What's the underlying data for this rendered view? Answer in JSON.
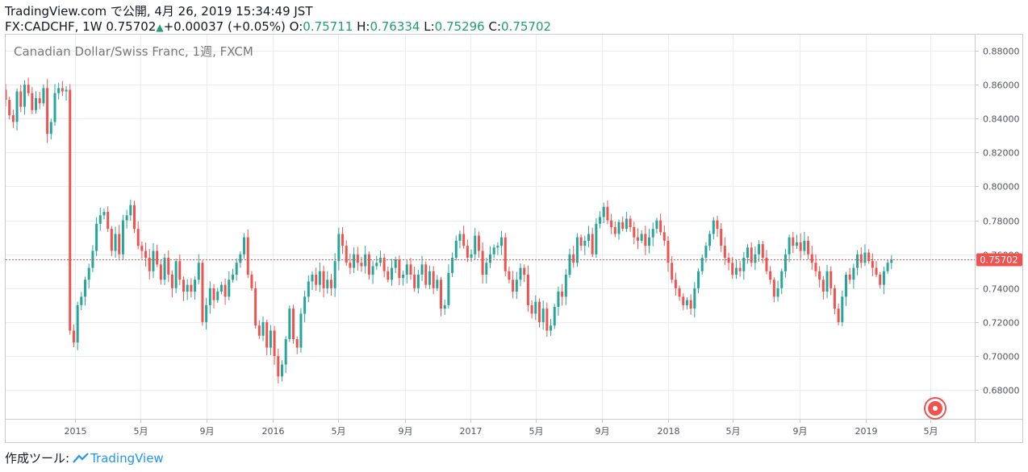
{
  "header": {
    "published": "TradingView.com で公開, 4月 26, 2019 15:34:49 JST",
    "symbol_interval": "FX:CADCHF, 1W",
    "last": "0.75702",
    "change": "+0.00037 (+0.05%)",
    "o_label": "O:",
    "o": "0.75711",
    "h_label": "H:",
    "h": "0.76334",
    "l_label": "L:",
    "l": "0.75296",
    "c_label": "C:",
    "c": "0.75702"
  },
  "footer": {
    "made_with": "作成ツール:",
    "brand": "TradingView"
  },
  "colors": {
    "up": "#26a69a",
    "down": "#ef5350",
    "grid": "#e9ecf0",
    "price_line": "#ef5350",
    "axis_text": "#50535e"
  },
  "chart_data": {
    "type": "candlestick",
    "title": "Canadian Dollar/Swiss Franc, 1週, FXCM",
    "ylim": [
      0.663,
      0.8895
    ],
    "y_ticks": [
      0.68,
      0.7,
      0.72,
      0.74,
      0.76,
      0.78,
      0.8,
      0.82,
      0.84,
      0.86,
      0.88
    ],
    "y_tick_labels": [
      "0.68000",
      "0.70000",
      "0.72000",
      "0.74000",
      "0.76000",
      "0.78000",
      "0.80000",
      "0.82000",
      "0.84000",
      "0.86000",
      "0.88000"
    ],
    "x_range": [
      "2014-08-25",
      "2019-07-22"
    ],
    "x_ticks": [
      {
        "date": "2015-01-01",
        "label": "2015"
      },
      {
        "date": "2015-05-01",
        "label": "5月"
      },
      {
        "date": "2015-09-01",
        "label": "9月"
      },
      {
        "date": "2016-01-01",
        "label": "2016"
      },
      {
        "date": "2016-05-01",
        "label": "5月"
      },
      {
        "date": "2016-09-01",
        "label": "9月"
      },
      {
        "date": "2017-01-01",
        "label": "2017"
      },
      {
        "date": "2017-05-01",
        "label": "5月"
      },
      {
        "date": "2017-09-01",
        "label": "9月"
      },
      {
        "date": "2018-01-01",
        "label": "2018"
      },
      {
        "date": "2018-05-01",
        "label": "5月"
      },
      {
        "date": "2018-09-01",
        "label": "9月"
      },
      {
        "date": "2019-01-01",
        "label": "2019"
      },
      {
        "date": "2019-05-01",
        "label": "5月"
      }
    ],
    "last_price": 0.75702,
    "last_price_label": "0.75702",
    "start_date": "2014-08-25",
    "closes": [
      0.851,
      0.842,
      0.838,
      0.856,
      0.847,
      0.86,
      0.855,
      0.845,
      0.852,
      0.849,
      0.858,
      0.831,
      0.838,
      0.855,
      0.858,
      0.856,
      0.857,
      0.715,
      0.708,
      0.73,
      0.735,
      0.745,
      0.752,
      0.762,
      0.778,
      0.783,
      0.785,
      0.775,
      0.762,
      0.772,
      0.76,
      0.78,
      0.783,
      0.789,
      0.775,
      0.765,
      0.762,
      0.758,
      0.75,
      0.762,
      0.754,
      0.745,
      0.758,
      0.748,
      0.74,
      0.756,
      0.745,
      0.738,
      0.742,
      0.738,
      0.745,
      0.755,
      0.72,
      0.73,
      0.74,
      0.733,
      0.738,
      0.742,
      0.735,
      0.745,
      0.748,
      0.755,
      0.76,
      0.77,
      0.748,
      0.74,
      0.718,
      0.712,
      0.72,
      0.705,
      0.715,
      0.7,
      0.688,
      0.695,
      0.71,
      0.728,
      0.71,
      0.705,
      0.725,
      0.735,
      0.744,
      0.748,
      0.742,
      0.75,
      0.74,
      0.745,
      0.74,
      0.756,
      0.772,
      0.765,
      0.755,
      0.752,
      0.76,
      0.755,
      0.753,
      0.76,
      0.748,
      0.753,
      0.755,
      0.758,
      0.75,
      0.745,
      0.752,
      0.757,
      0.746,
      0.748,
      0.754,
      0.748,
      0.74,
      0.748,
      0.754,
      0.742,
      0.75,
      0.74,
      0.745,
      0.728,
      0.73,
      0.749,
      0.758,
      0.768,
      0.772,
      0.765,
      0.758,
      0.76,
      0.771,
      0.762,
      0.748,
      0.755,
      0.76,
      0.764,
      0.765,
      0.77,
      0.75,
      0.745,
      0.738,
      0.745,
      0.752,
      0.748,
      0.73,
      0.725,
      0.732,
      0.72,
      0.728,
      0.715,
      0.718,
      0.729,
      0.738,
      0.735,
      0.748,
      0.76,
      0.755,
      0.77,
      0.765,
      0.768,
      0.772,
      0.76,
      0.778,
      0.782,
      0.788,
      0.78,
      0.776,
      0.772,
      0.779,
      0.775,
      0.781,
      0.776,
      0.77,
      0.768,
      0.772,
      0.765,
      0.77,
      0.775,
      0.78,
      0.773,
      0.768,
      0.755,
      0.745,
      0.74,
      0.735,
      0.73,
      0.733,
      0.728,
      0.74,
      0.75,
      0.758,
      0.765,
      0.772,
      0.78,
      0.775,
      0.765,
      0.758,
      0.755,
      0.748,
      0.752,
      0.75,
      0.758,
      0.764,
      0.755,
      0.76,
      0.766,
      0.758,
      0.75,
      0.745,
      0.735,
      0.74,
      0.75,
      0.76,
      0.77,
      0.765,
      0.767,
      0.762,
      0.768,
      0.76,
      0.755,
      0.75,
      0.745,
      0.738,
      0.75,
      0.74,
      0.728,
      0.72,
      0.735,
      0.748,
      0.745,
      0.752,
      0.76,
      0.755,
      0.761,
      0.756,
      0.752,
      0.748,
      0.742,
      0.75,
      0.755,
      0.757
    ],
    "first_open": 0.857
  }
}
